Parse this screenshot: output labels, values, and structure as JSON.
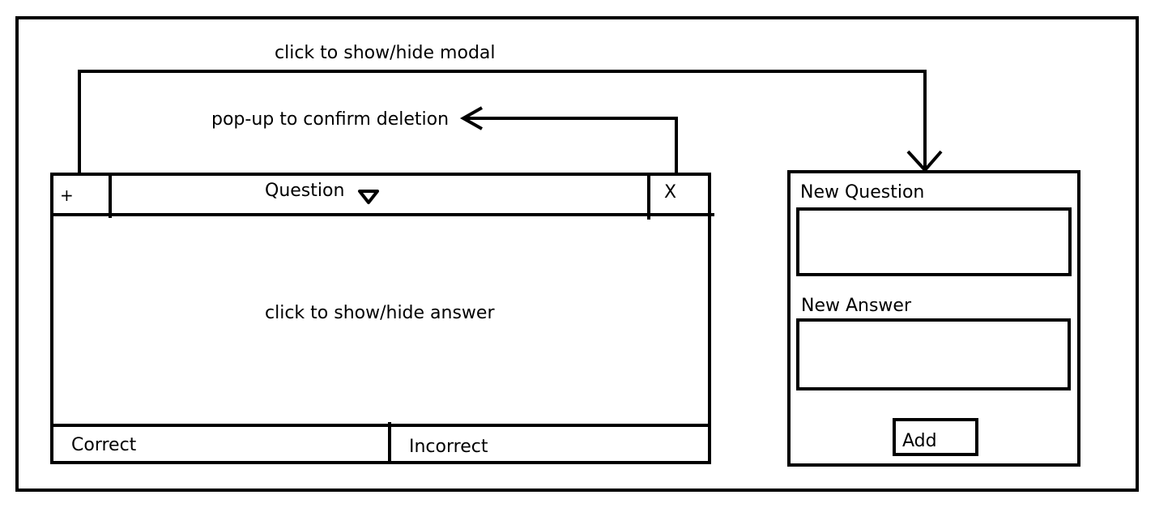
{
  "annotations": {
    "modal_toggle": "click to show/hide modal",
    "delete_confirm": "pop-up to confirm deletion",
    "answer_toggle": "click to show/hide answer"
  },
  "card": {
    "add_label": "+",
    "question_label": "Question",
    "delete_label": "X",
    "correct_label": "Correct",
    "incorrect_label": "Incorrect"
  },
  "modal": {
    "new_question_label": "New Question",
    "new_question_value": "",
    "new_answer_label": "New Answer",
    "new_answer_value": "",
    "add_button_label": "Add"
  },
  "icons": {
    "dropdown": "triangle-down-icon",
    "arrow": "arrow-icon"
  },
  "colors": {
    "ink": "#000000",
    "paper": "#ffffff"
  }
}
